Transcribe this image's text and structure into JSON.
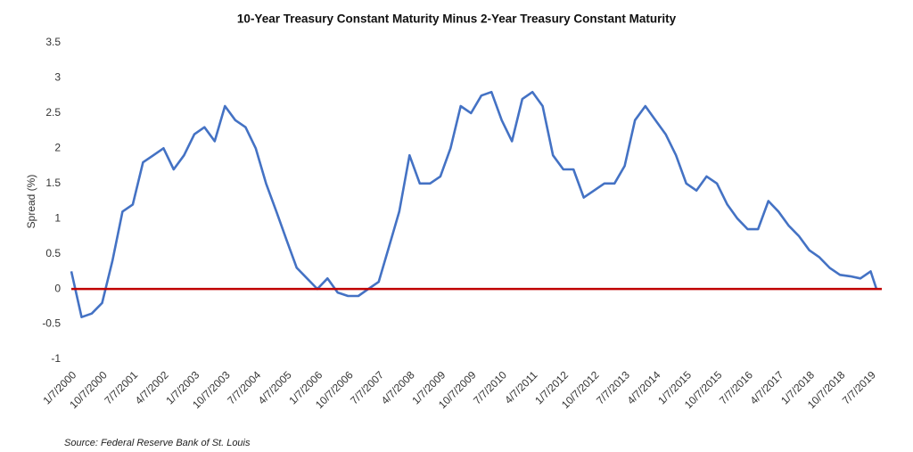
{
  "chart_data": {
    "type": "line",
    "title": "10-Year Treasury Constant Maturity Minus 2-Year Treasury Constant Maturity",
    "y_label": "Spread (%)",
    "source": "Source: Federal Reserve Bank of St. Louis",
    "color": "#4472c4",
    "x": [
      "1/7/2000",
      "4/7/2000",
      "7/7/2000",
      "10/7/2000",
      "1/7/2001",
      "4/7/2001",
      "7/7/2001",
      "10/7/2001",
      "1/7/2002",
      "4/7/2002",
      "7/7/2002",
      "10/7/2002",
      "1/7/2003",
      "4/7/2003",
      "7/7/2003",
      "10/7/2003",
      "1/7/2004",
      "4/7/2004",
      "7/7/2004",
      "10/7/2004",
      "1/7/2005",
      "4/7/2005",
      "7/7/2005",
      "10/7/2005",
      "1/7/2006",
      "4/7/2006",
      "7/7/2006",
      "10/7/2006",
      "1/7/2007",
      "4/7/2007",
      "7/7/2007",
      "10/7/2007",
      "1/7/2008",
      "4/7/2008",
      "7/7/2008",
      "10/7/2008",
      "1/7/2009",
      "4/7/2009",
      "7/7/2009",
      "10/7/2009",
      "1/7/2010",
      "4/7/2010",
      "7/7/2010",
      "10/7/2010",
      "1/7/2011",
      "4/7/2011",
      "7/7/2011",
      "10/7/2011",
      "1/7/2012",
      "4/7/2012",
      "7/7/2012",
      "10/7/2012",
      "1/7/2013",
      "4/7/2013",
      "7/7/2013",
      "10/7/2013",
      "1/7/2014",
      "4/7/2014",
      "7/7/2014",
      "10/7/2014",
      "1/7/2015",
      "4/7/2015",
      "7/7/2015",
      "10/7/2015",
      "1/7/2016",
      "4/7/2016",
      "7/7/2016",
      "10/7/2016",
      "1/7/2017",
      "4/7/2017",
      "7/7/2017",
      "10/7/2017",
      "1/7/2018",
      "4/7/2018",
      "7/7/2018",
      "10/7/2018",
      "1/7/2019",
      "4/7/2019",
      "7/7/2019",
      "8/28/2019"
    ],
    "values": [
      0.25,
      -0.4,
      -0.35,
      -0.2,
      0.4,
      1.1,
      1.2,
      1.8,
      1.9,
      2.0,
      1.7,
      1.9,
      2.2,
      2.3,
      2.1,
      2.6,
      2.4,
      2.3,
      2.0,
      1.5,
      1.1,
      0.7,
      0.3,
      0.15,
      0.0,
      0.15,
      -0.05,
      -0.1,
      -0.1,
      0.0,
      0.1,
      0.6,
      1.1,
      1.9,
      1.5,
      1.5,
      1.6,
      2.0,
      2.6,
      2.5,
      2.75,
      2.8,
      2.4,
      2.1,
      2.7,
      2.8,
      2.6,
      1.9,
      1.7,
      1.7,
      1.3,
      1.4,
      1.5,
      1.5,
      1.75,
      2.4,
      2.6,
      2.4,
      2.2,
      1.9,
      1.5,
      1.4,
      1.6,
      1.5,
      1.2,
      1.0,
      0.85,
      0.85,
      1.25,
      1.1,
      0.9,
      0.75,
      0.55,
      0.45,
      0.3,
      0.2,
      0.18,
      0.15,
      0.25,
      0.0
    ],
    "xlim": [
      "1/7/2000",
      "8/28/2019"
    ],
    "xticks": [
      "1/7/2000",
      "10/7/2000",
      "7/7/2001",
      "4/7/2002",
      "1/7/2003",
      "10/7/2003",
      "7/7/2004",
      "4/7/2005",
      "1/7/2006",
      "10/7/2006",
      "7/7/2007",
      "4/7/2008",
      "1/7/2009",
      "10/7/2009",
      "7/7/2010",
      "4/7/2011",
      "1/7/2012",
      "10/7/2012",
      "7/7/2013",
      "4/7/2014",
      "1/7/2015",
      "10/7/2015",
      "7/7/2016",
      "4/7/2017",
      "1/7/2018",
      "10/7/2018",
      "7/7/2019"
    ],
    "ylim": [
      -1,
      3.5
    ],
    "yticks": [
      -1,
      -0.5,
      0,
      0.5,
      1,
      1.5,
      2,
      2.5,
      3,
      3.5
    ],
    "reference_line": {
      "value": 0,
      "color": "#c00000"
    }
  }
}
